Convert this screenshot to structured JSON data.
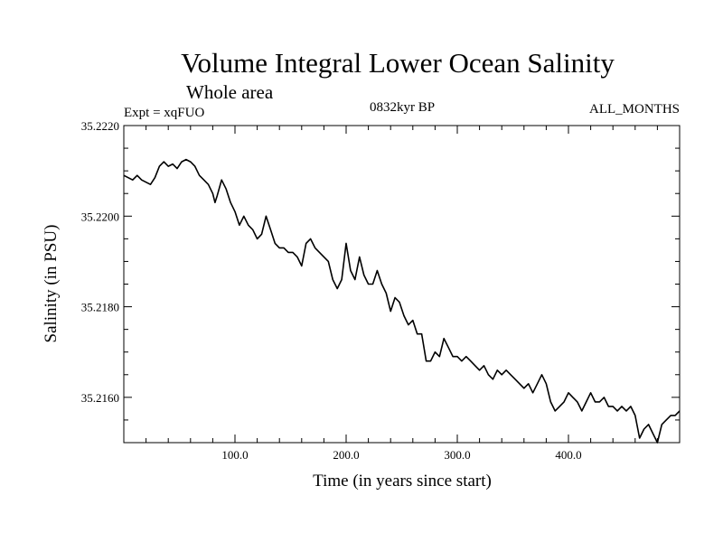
{
  "chart_data": {
    "type": "line",
    "title": "Volume Integral Lower Ocean Salinity",
    "subtitle": "Whole area",
    "experiment_label": "Expt = xqFUO",
    "period_label": "0832kyr BP",
    "months_label": "ALL_MONTHS",
    "xlabel": "Time (in years since start)",
    "ylabel": "Salinity (in PSU)",
    "xlim": [
      0,
      500
    ],
    "ylim": [
      35.215,
      35.222
    ],
    "x_tick_labels": [
      {
        "value": 100,
        "label": "100.0"
      },
      {
        "value": 200,
        "label": "200.0"
      },
      {
        "value": 300,
        "label": "300.0"
      },
      {
        "value": 400,
        "label": "400.0"
      }
    ],
    "y_tick_labels": [
      {
        "value": 35.222,
        "label": "35.2220"
      },
      {
        "value": 35.22,
        "label": "35.2200"
      },
      {
        "value": 35.218,
        "label": "35.2180"
      },
      {
        "value": 35.216,
        "label": "35.2160"
      }
    ],
    "grid": false,
    "series": [
      {
        "name": "salinity",
        "color": "#000000",
        "points": [
          [
            0,
            35.2209
          ],
          [
            4,
            35.22085
          ],
          [
            8,
            35.2208
          ],
          [
            12,
            35.2209
          ],
          [
            16,
            35.2208
          ],
          [
            20,
            35.22075
          ],
          [
            24,
            35.2207
          ],
          [
            28,
            35.22085
          ],
          [
            32,
            35.2211
          ],
          [
            36,
            35.2212
          ],
          [
            40,
            35.2211
          ],
          [
            44,
            35.22115
          ],
          [
            48,
            35.22105
          ],
          [
            52,
            35.2212
          ],
          [
            56,
            35.22125
          ],
          [
            60,
            35.2212
          ],
          [
            64,
            35.2211
          ],
          [
            68,
            35.2209
          ],
          [
            72,
            35.2208
          ],
          [
            76,
            35.2207
          ],
          [
            80,
            35.2205
          ],
          [
            82,
            35.2203
          ],
          [
            84,
            35.22045
          ],
          [
            88,
            35.2208
          ],
          [
            92,
            35.2206
          ],
          [
            96,
            35.2203
          ],
          [
            100,
            35.2201
          ],
          [
            104,
            35.2198
          ],
          [
            108,
            35.22
          ],
          [
            112,
            35.2198
          ],
          [
            116,
            35.2197
          ],
          [
            120,
            35.2195
          ],
          [
            124,
            35.2196
          ],
          [
            128,
            35.22
          ],
          [
            132,
            35.2197
          ],
          [
            136,
            35.2194
          ],
          [
            140,
            35.2193
          ],
          [
            144,
            35.2193
          ],
          [
            148,
            35.2192
          ],
          [
            152,
            35.2192
          ],
          [
            156,
            35.2191
          ],
          [
            160,
            35.2189
          ],
          [
            164,
            35.2194
          ],
          [
            168,
            35.2195
          ],
          [
            172,
            35.2193
          ],
          [
            176,
            35.2192
          ],
          [
            180,
            35.2191
          ],
          [
            184,
            35.219
          ],
          [
            188,
            35.2186
          ],
          [
            192,
            35.2184
          ],
          [
            196,
            35.2186
          ],
          [
            200,
            35.2194
          ],
          [
            204,
            35.2188
          ],
          [
            208,
            35.2186
          ],
          [
            212,
            35.2191
          ],
          [
            216,
            35.2187
          ],
          [
            220,
            35.2185
          ],
          [
            224,
            35.2185
          ],
          [
            228,
            35.2188
          ],
          [
            232,
            35.2185
          ],
          [
            236,
            35.2183
          ],
          [
            240,
            35.2179
          ],
          [
            244,
            35.2182
          ],
          [
            248,
            35.2181
          ],
          [
            252,
            35.2178
          ],
          [
            256,
            35.2176
          ],
          [
            260,
            35.2177
          ],
          [
            264,
            35.2174
          ],
          [
            268,
            35.2174
          ],
          [
            272,
            35.2168
          ],
          [
            276,
            35.2168
          ],
          [
            280,
            35.217
          ],
          [
            284,
            35.2169
          ],
          [
            288,
            35.2173
          ],
          [
            292,
            35.2171
          ],
          [
            296,
            35.2169
          ],
          [
            300,
            35.2169
          ],
          [
            304,
            35.2168
          ],
          [
            308,
            35.2169
          ],
          [
            312,
            35.2168
          ],
          [
            316,
            35.2167
          ],
          [
            320,
            35.2166
          ],
          [
            324,
            35.2167
          ],
          [
            328,
            35.2165
          ],
          [
            332,
            35.2164
          ],
          [
            336,
            35.2166
          ],
          [
            340,
            35.2165
          ],
          [
            344,
            35.2166
          ],
          [
            348,
            35.2165
          ],
          [
            352,
            35.2164
          ],
          [
            356,
            35.2163
          ],
          [
            360,
            35.2162
          ],
          [
            364,
            35.2163
          ],
          [
            368,
            35.2161
          ],
          [
            372,
            35.2163
          ],
          [
            376,
            35.2165
          ],
          [
            380,
            35.2163
          ],
          [
            384,
            35.2159
          ],
          [
            388,
            35.2157
          ],
          [
            392,
            35.2158
          ],
          [
            396,
            35.2159
          ],
          [
            400,
            35.2161
          ],
          [
            404,
            35.216
          ],
          [
            408,
            35.2159
          ],
          [
            412,
            35.2157
          ],
          [
            416,
            35.2159
          ],
          [
            420,
            35.2161
          ],
          [
            424,
            35.2159
          ],
          [
            428,
            35.2159
          ],
          [
            432,
            35.216
          ],
          [
            436,
            35.2158
          ],
          [
            440,
            35.2158
          ],
          [
            444,
            35.2157
          ],
          [
            448,
            35.2158
          ],
          [
            452,
            35.2157
          ],
          [
            456,
            35.2158
          ],
          [
            460,
            35.2156
          ],
          [
            464,
            35.2151
          ],
          [
            468,
            35.2153
          ],
          [
            472,
            35.2154
          ],
          [
            476,
            35.2152
          ],
          [
            480,
            35.215
          ],
          [
            484,
            35.2154
          ],
          [
            488,
            35.2155
          ],
          [
            492,
            35.2156
          ],
          [
            496,
            35.2156
          ],
          [
            500,
            35.2157
          ]
        ]
      }
    ]
  }
}
